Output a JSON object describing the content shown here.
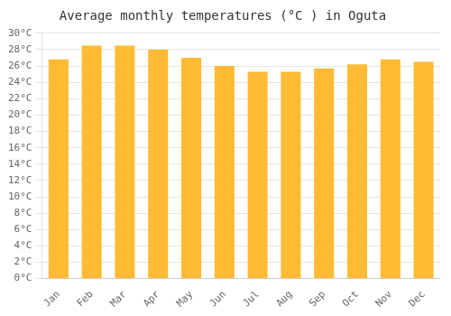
{
  "chart_data": {
    "type": "bar",
    "title": "Average monthly temperatures (°C ) in Oguta",
    "categories": [
      "Jan",
      "Feb",
      "Mar",
      "Apr",
      "May",
      "Jun",
      "Jul",
      "Aug",
      "Sep",
      "Oct",
      "Nov",
      "Dec"
    ],
    "values": [
      26.8,
      28.5,
      28.5,
      28.0,
      27.0,
      26.0,
      25.3,
      25.3,
      25.7,
      26.2,
      26.8,
      26.5
    ],
    "color": "#FFBB33",
    "ylim": [
      0,
      30
    ],
    "yticks": [
      {
        "value": 0,
        "label": "0°C"
      },
      {
        "value": 2,
        "label": "2°C"
      },
      {
        "value": 4,
        "label": "4°C"
      },
      {
        "value": 6,
        "label": "6°C"
      },
      {
        "value": 8,
        "label": "8°C"
      },
      {
        "value": 10,
        "label": "10°C"
      },
      {
        "value": 12,
        "label": "12°C"
      },
      {
        "value": 14,
        "label": "14°C"
      },
      {
        "value": 16,
        "label": "16°C"
      },
      {
        "value": 18,
        "label": "18°C"
      },
      {
        "value": 20,
        "label": "20°C"
      },
      {
        "value": 22,
        "label": "22°C"
      },
      {
        "value": 24,
        "label": "24°C"
      },
      {
        "value": 26,
        "label": "26°C"
      },
      {
        "value": 28,
        "label": "28°C"
      },
      {
        "value": 30,
        "label": "30°C"
      }
    ],
    "grid": true
  }
}
